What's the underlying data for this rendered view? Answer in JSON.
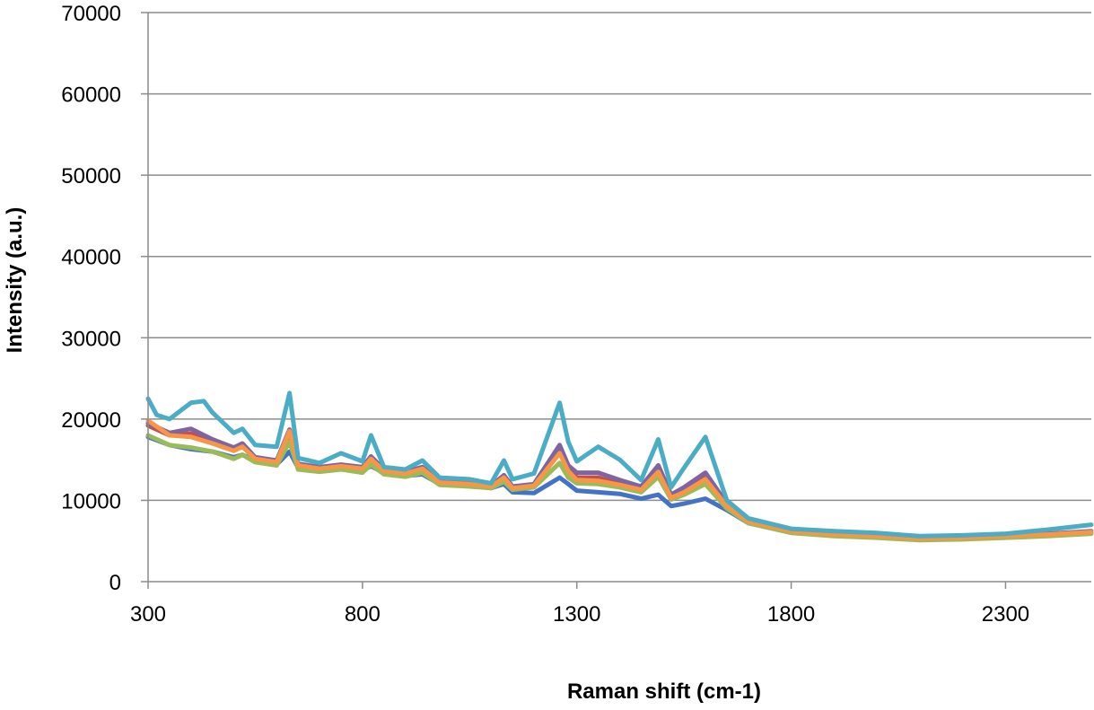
{
  "chart_data": {
    "type": "line",
    "title": "",
    "xlabel": "Raman shift (cm-1)",
    "ylabel": "Intensity (a.u.)",
    "xlim": [
      300,
      2500
    ],
    "ylim": [
      0,
      70000
    ],
    "x_ticks": [
      300,
      800,
      1300,
      1800,
      2300
    ],
    "y_ticks": [
      0,
      10000,
      20000,
      30000,
      40000,
      50000,
      60000,
      70000
    ],
    "grid": "horizontal",
    "legend": "none",
    "series": [
      {
        "color": "#4472c4",
        "x": [
          300,
          350,
          400,
          450,
          500,
          520,
          550,
          600,
          630,
          650,
          700,
          750,
          800,
          820,
          850,
          900,
          940,
          980,
          1050,
          1100,
          1130,
          1150,
          1200,
          1260,
          1280,
          1300,
          1350,
          1400,
          1450,
          1490,
          1520,
          1550,
          1600,
          1650,
          1700,
          1800,
          1900,
          2000,
          2100,
          2200,
          2300,
          2400,
          2500
        ],
        "y": [
          17800,
          16800,
          16300,
          16000,
          15300,
          15600,
          14900,
          14400,
          16000,
          14000,
          13700,
          13900,
          13700,
          14200,
          13400,
          13000,
          13200,
          12000,
          11800,
          11500,
          12000,
          11000,
          10900,
          12800,
          12000,
          11200,
          11000,
          10800,
          10200,
          10700,
          9300,
          9600,
          10200,
          8800,
          7200,
          6100,
          5700,
          5500,
          5200,
          5300,
          5500,
          5700,
          6000
        ]
      },
      {
        "color": "#c0504d",
        "x": [
          300,
          350,
          400,
          450,
          500,
          520,
          550,
          600,
          630,
          650,
          700,
          750,
          800,
          820,
          850,
          900,
          940,
          980,
          1050,
          1100,
          1130,
          1150,
          1200,
          1260,
          1280,
          1300,
          1350,
          1400,
          1450,
          1490,
          1520,
          1550,
          1600,
          1650,
          1700,
          1800,
          1900,
          2000,
          2100,
          2200,
          2300,
          2400,
          2500
        ],
        "y": [
          19200,
          18000,
          18200,
          17200,
          16300,
          16800,
          15200,
          14800,
          18300,
          14400,
          14000,
          14300,
          14000,
          15300,
          13700,
          13400,
          14000,
          12200,
          12000,
          11700,
          13000,
          11600,
          11800,
          16200,
          14000,
          12800,
          12800,
          12000,
          11300,
          13800,
          10300,
          11200,
          12900,
          9400,
          7500,
          6200,
          5800,
          5600,
          5300,
          5400,
          5600,
          5800,
          6100
        ]
      },
      {
        "color": "#8064a2",
        "x": [
          300,
          350,
          400,
          450,
          500,
          520,
          550,
          600,
          630,
          650,
          700,
          750,
          800,
          820,
          850,
          900,
          940,
          980,
          1050,
          1100,
          1130,
          1150,
          1200,
          1260,
          1280,
          1300,
          1350,
          1400,
          1450,
          1490,
          1520,
          1550,
          1600,
          1650,
          1700,
          1800,
          1900,
          2000,
          2100,
          2200,
          2300,
          2400,
          2500
        ],
        "y": [
          19500,
          18300,
          18800,
          17500,
          16500,
          17000,
          15300,
          14900,
          18700,
          14500,
          14100,
          14400,
          14100,
          15400,
          13800,
          13500,
          14100,
          12300,
          12100,
          11800,
          13100,
          11700,
          12000,
          16800,
          14300,
          13400,
          13400,
          12500,
          11700,
          14300,
          10700,
          11600,
          13400,
          9600,
          7600,
          6300,
          5900,
          5700,
          5400,
          5500,
          5700,
          5900,
          6200
        ]
      },
      {
        "color": "#9bbb59",
        "x": [
          300,
          350,
          400,
          450,
          500,
          520,
          550,
          600,
          630,
          650,
          700,
          750,
          800,
          820,
          850,
          900,
          940,
          980,
          1050,
          1100,
          1130,
          1150,
          1200,
          1260,
          1280,
          1300,
          1350,
          1400,
          1450,
          1490,
          1520,
          1550,
          1600,
          1650,
          1700,
          1800,
          1900,
          2000,
          2100,
          2200,
          2300,
          2400,
          2500
        ],
        "y": [
          18000,
          16800,
          16500,
          16000,
          15100,
          15600,
          14700,
          14300,
          17200,
          13800,
          13500,
          13800,
          13400,
          14400,
          13200,
          12900,
          13400,
          11900,
          11700,
          11500,
          12300,
          11300,
          11600,
          14600,
          12800,
          12100,
          12000,
          11600,
          11000,
          12900,
          10100,
          10700,
          12000,
          9000,
          7200,
          6000,
          5600,
          5400,
          5100,
          5200,
          5400,
          5600,
          5900
        ]
      },
      {
        "color": "#4bacc6",
        "x": [
          300,
          320,
          350,
          400,
          430,
          450,
          500,
          520,
          550,
          600,
          630,
          650,
          700,
          750,
          800,
          820,
          850,
          900,
          940,
          980,
          1050,
          1100,
          1130,
          1150,
          1200,
          1260,
          1280,
          1300,
          1350,
          1400,
          1450,
          1490,
          1520,
          1550,
          1600,
          1650,
          1700,
          1800,
          1900,
          2000,
          2100,
          2200,
          2300,
          2400,
          2500
        ],
        "y": [
          22500,
          20500,
          20000,
          22000,
          22200,
          20800,
          18300,
          18800,
          16800,
          16600,
          23200,
          15200,
          14600,
          15800,
          14800,
          18000,
          14100,
          13800,
          14900,
          12800,
          12600,
          12100,
          14900,
          12600,
          13300,
          22000,
          17200,
          14800,
          16600,
          15000,
          12500,
          17500,
          11600,
          14000,
          17800,
          10000,
          7800,
          6500,
          6200,
          6000,
          5600,
          5700,
          5900,
          6400,
          7000
        ]
      },
      {
        "color": "#f79646",
        "x": [
          300,
          350,
          400,
          450,
          500,
          520,
          550,
          600,
          630,
          650,
          700,
          750,
          800,
          820,
          850,
          900,
          940,
          980,
          1050,
          1100,
          1130,
          1150,
          1200,
          1260,
          1280,
          1300,
          1350,
          1400,
          1450,
          1490,
          1520,
          1550,
          1600,
          1650,
          1700,
          1800,
          1900,
          2000,
          2100,
          2200,
          2300,
          2400,
          2500
        ],
        "y": [
          19800,
          18000,
          17800,
          17000,
          16100,
          16600,
          15100,
          14700,
          18500,
          14300,
          13900,
          14200,
          13900,
          15100,
          13600,
          13300,
          13900,
          12200,
          12000,
          11700,
          12800,
          11500,
          11800,
          15800,
          13600,
          12500,
          12400,
          11900,
          11300,
          13500,
          10300,
          11000,
          12600,
          9300,
          7400,
          6200,
          5800,
          5600,
          5300,
          5400,
          5600,
          5800,
          6100
        ]
      }
    ]
  }
}
